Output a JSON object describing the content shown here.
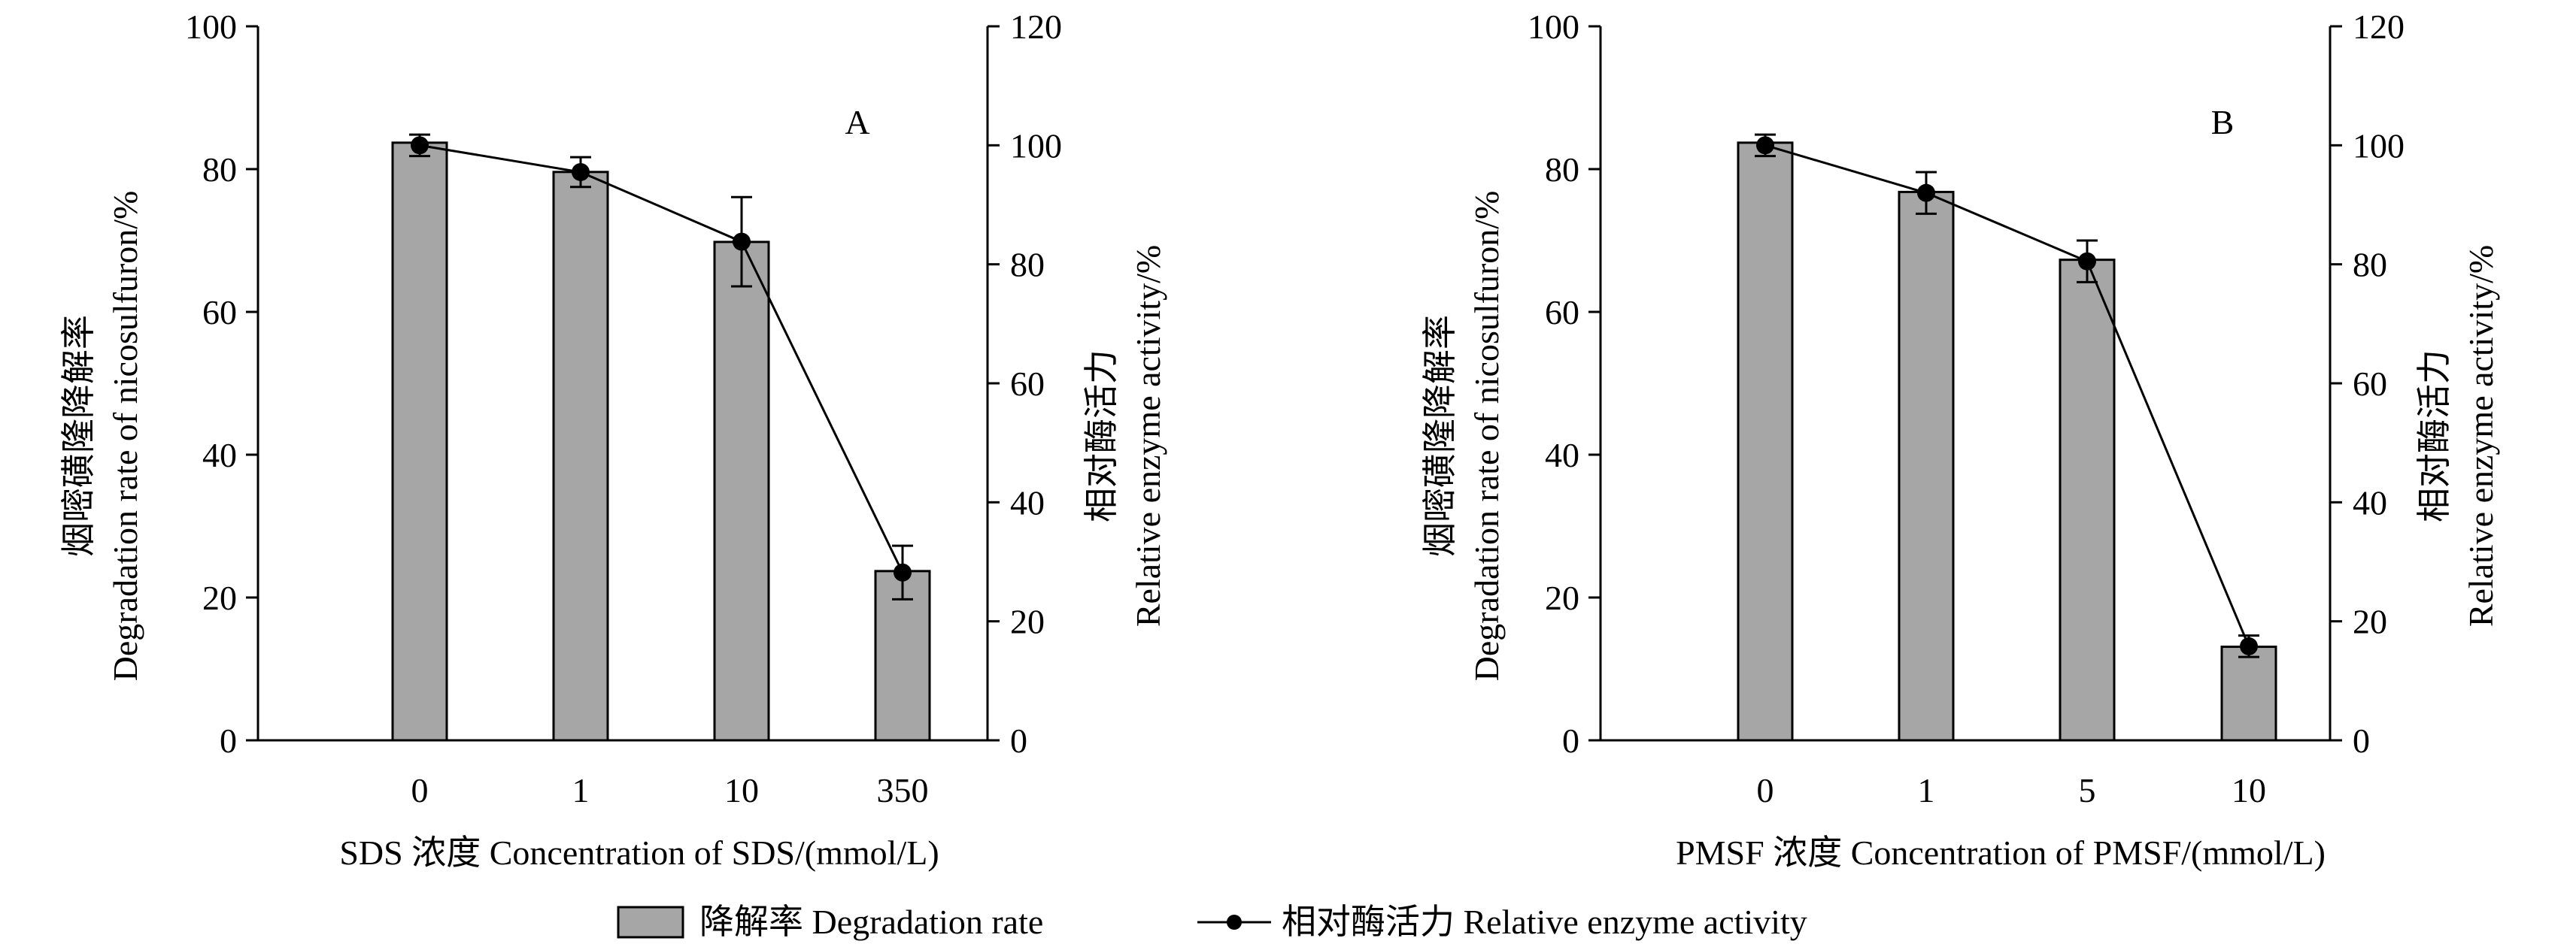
{
  "chart_data": [
    {
      "type": "bar+line",
      "panel_label": "A",
      "categories": [
        "0",
        "1",
        "10",
        "350"
      ],
      "series": [
        {
          "name": "降解率 Degradation rate",
          "kind": "bar",
          "axis": "left",
          "values": [
            83.7,
            79.6,
            69.8,
            23.7
          ]
        },
        {
          "name": "相对酶活力 Relative enzyme activity",
          "kind": "line",
          "axis": "right",
          "values": [
            100,
            95.5,
            83.8,
            28.2
          ],
          "errors": [
            1.8,
            2.5,
            7.5,
            4.5
          ]
        }
      ],
      "xlabel": "SDS 浓度 Concentration of SDS/(mmol/L)",
      "ylabel_cn": "烟嘧磺隆降解率",
      "ylabel_en": "Degradation rate of nicosulfuron/%",
      "y2label_cn": "相对酶活力",
      "y2label_en": "Relative enzyme activity/%",
      "ylim": [
        0,
        100
      ],
      "yticks": [
        "0",
        "20",
        "40",
        "60",
        "80",
        "100"
      ],
      "y2lim": [
        0,
        120
      ],
      "y2ticks": [
        "0",
        "20",
        "40",
        "60",
        "80",
        "100",
        "120"
      ]
    },
    {
      "type": "bar+line",
      "panel_label": "B",
      "categories": [
        "0",
        "1",
        "5",
        "10"
      ],
      "series": [
        {
          "name": "降解率 Degradation rate",
          "kind": "bar",
          "axis": "left",
          "values": [
            83.7,
            76.8,
            67.3,
            13.1
          ]
        },
        {
          "name": "相对酶活力 Relative enzyme activity",
          "kind": "line",
          "axis": "right",
          "values": [
            100,
            92.0,
            80.5,
            15.8
          ],
          "errors": [
            1.8,
            3.5,
            3.5,
            1.8
          ]
        }
      ],
      "xlabel": "PMSF 浓度 Concentration of PMSF/(mmol/L)",
      "ylabel_cn": "烟嘧磺隆降解率",
      "ylabel_en": "Degradation rate of nicosulfuron/%",
      "y2label_cn": "相对酶活力",
      "y2label_en": "Relative enzyme activity/%",
      "ylim": [
        0,
        100
      ],
      "yticks": [
        "0",
        "20",
        "40",
        "60",
        "80",
        "100"
      ],
      "y2lim": [
        0,
        120
      ],
      "y2ticks": [
        "0",
        "20",
        "40",
        "60",
        "80",
        "100",
        "120"
      ]
    }
  ],
  "legend": {
    "bar_label": "降解率 Degradation rate",
    "line_label": "相对酶活力 Relative enzyme activity"
  },
  "colors": {
    "bar_fill": "#a6a6a6",
    "line": "#000000",
    "axis": "#000000"
  }
}
